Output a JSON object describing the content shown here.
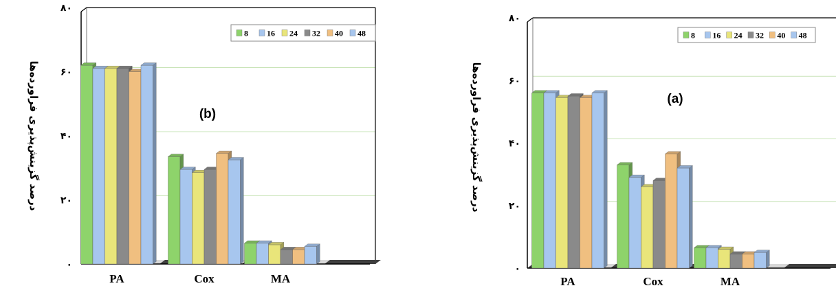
{
  "chart_data": [
    {
      "type": "bar",
      "panel_label": "(b)",
      "ylabel": "درصد گزینش‌پذیری فراورده‌ها",
      "categories": [
        "PA",
        "Cox",
        "MA"
      ],
      "yticks": [
        "۰",
        "۲۰",
        "۴۰",
        "۶۰",
        "۸۰"
      ],
      "ylim": [
        0,
        80
      ],
      "legend_position": "top-right",
      "grid": true,
      "series": [
        {
          "name": "8",
          "color": "#8ed36b",
          "values": [
            62,
            33.5,
            6.5
          ]
        },
        {
          "name": "16",
          "color": "#a7c6ee",
          "values": [
            61,
            29.5,
            6.5
          ]
        },
        {
          "name": "24",
          "color": "#e9e57a",
          "values": [
            61,
            28.5,
            6
          ]
        },
        {
          "name": "32",
          "color": "#8a8a8a",
          "values": [
            61,
            29.5,
            4.5
          ]
        },
        {
          "name": "40",
          "color": "#f0bf80",
          "values": [
            60,
            34.5,
            4.5
          ]
        },
        {
          "name": "48",
          "color": "#a7c6ee",
          "values": [
            62,
            32.5,
            5.5
          ]
        }
      ]
    },
    {
      "type": "bar",
      "panel_label": "(a)",
      "ylabel": "درصد گزینش‌پذیری فراورده‌ها",
      "categories": [
        "PA",
        "Cox",
        "MA"
      ],
      "yticks": [
        "۰",
        "۲۰",
        "۴۰",
        "۶۰",
        "۸۰"
      ],
      "ylim": [
        0,
        80
      ],
      "legend_position": "top-right",
      "grid": true,
      "series": [
        {
          "name": "8",
          "color": "#8ed36b",
          "values": [
            56,
            33,
            6.5
          ]
        },
        {
          "name": "16",
          "color": "#a7c6ee",
          "values": [
            56,
            29,
            6.5
          ]
        },
        {
          "name": "24",
          "color": "#e9e57a",
          "values": [
            54.5,
            26,
            6
          ]
        },
        {
          "name": "32",
          "color": "#8a8a8a",
          "values": [
            55,
            28,
            4.5
          ]
        },
        {
          "name": "40",
          "color": "#f0bf80",
          "values": [
            54.5,
            36.5,
            4.5
          ]
        },
        {
          "name": "48",
          "color": "#a7c6ee",
          "values": [
            56,
            32,
            5
          ]
        }
      ]
    }
  ]
}
